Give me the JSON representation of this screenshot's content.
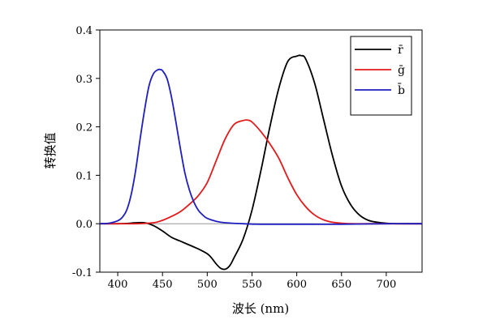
{
  "chart_data": {
    "type": "line",
    "title": "",
    "xlabel": "波长 (nm)",
    "ylabel": "转换值",
    "xlim": [
      380,
      740
    ],
    "ylim": [
      -0.1,
      0.4
    ],
    "xticks": [
      400,
      450,
      500,
      550,
      600,
      650,
      700
    ],
    "yticks": [
      -0.1,
      0.0,
      0.1,
      0.2,
      0.3,
      0.4
    ],
    "ytick_labels": [
      "-0.1",
      "0.0",
      "0.1",
      "0.2",
      "0.3",
      "0.4"
    ],
    "grid": false,
    "legend_position": "top-right",
    "series": [
      {
        "name": "r̄",
        "color": "#000000",
        "x": [
          380,
          390,
          400,
          410,
          420,
          430,
          440,
          450,
          460,
          470,
          480,
          490,
          500,
          505,
          510,
          515,
          520,
          525,
          530,
          540,
          550,
          560,
          570,
          580,
          590,
          600,
          605,
          610,
          620,
          630,
          640,
          650,
          660,
          670,
          680,
          690,
          700,
          710,
          720,
          740
        ],
        "y": [
          0.0,
          0.0,
          0.0,
          0.0005,
          0.002,
          0.002,
          -0.004,
          -0.015,
          -0.028,
          -0.036,
          -0.044,
          -0.052,
          -0.062,
          -0.071,
          -0.083,
          -0.092,
          -0.094,
          -0.087,
          -0.07,
          -0.032,
          0.028,
          0.11,
          0.2,
          0.28,
          0.335,
          0.346,
          0.347,
          0.34,
          0.29,
          0.215,
          0.14,
          0.078,
          0.04,
          0.018,
          0.007,
          0.003,
          0.001,
          0.0,
          0.0,
          0.0
        ]
      },
      {
        "name": "ḡ",
        "color": "#e31a1c",
        "x": [
          380,
          400,
          420,
          440,
          450,
          460,
          470,
          480,
          490,
          500,
          510,
          520,
          530,
          540,
          545,
          550,
          560,
          570,
          580,
          590,
          600,
          610,
          620,
          630,
          640,
          650,
          660,
          680,
          700,
          740
        ],
        "y": [
          0.0,
          0.0,
          0.0,
          0.002,
          0.007,
          0.015,
          0.025,
          0.04,
          0.058,
          0.085,
          0.13,
          0.175,
          0.205,
          0.213,
          0.214,
          0.21,
          0.19,
          0.165,
          0.135,
          0.095,
          0.06,
          0.035,
          0.018,
          0.008,
          0.003,
          0.001,
          0.0,
          0.0,
          0.0,
          0.0
        ]
      },
      {
        "name": "b̄",
        "color": "#1f1fbf",
        "x": [
          380,
          390,
          400,
          405,
          410,
          415,
          420,
          425,
          430,
          435,
          440,
          445,
          448,
          450,
          455,
          460,
          465,
          470,
          475,
          480,
          485,
          490,
          495,
          500,
          510,
          520,
          540,
          560,
          600,
          650,
          700,
          740
        ],
        "y": [
          0.0,
          0.001,
          0.006,
          0.013,
          0.028,
          0.06,
          0.11,
          0.175,
          0.235,
          0.285,
          0.31,
          0.318,
          0.318,
          0.316,
          0.3,
          0.262,
          0.21,
          0.155,
          0.105,
          0.07,
          0.045,
          0.028,
          0.018,
          0.011,
          0.005,
          0.002,
          0.0,
          -0.001,
          -0.001,
          -0.001,
          0.0,
          0.0
        ]
      }
    ]
  }
}
